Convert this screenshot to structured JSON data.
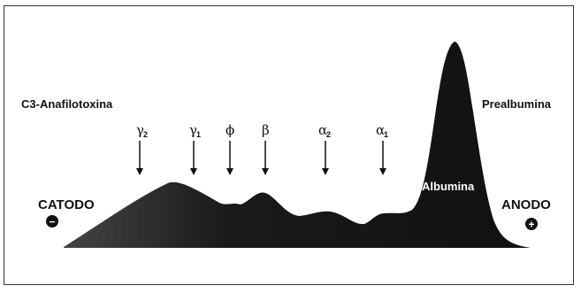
{
  "labels": {
    "left_top": "C3-Anafilotoxina",
    "right_top": "Prealbumina",
    "albumin": "Albumina",
    "cathode": "CATODO",
    "anode": "ANODO",
    "cathode_sign": "−",
    "anode_sign": "+"
  },
  "fractions": [
    {
      "symbol": "γ",
      "sub": "2"
    },
    {
      "symbol": "γ",
      "sub": "1"
    },
    {
      "symbol": "ϕ",
      "sub": ""
    },
    {
      "symbol": "β",
      "sub": ""
    },
    {
      "symbol": "α",
      "sub": "2"
    },
    {
      "symbol": "α",
      "sub": "1"
    }
  ],
  "colors": {
    "curve_dark": "#111111",
    "curve_light": "#3a3a3a",
    "border": "#333333"
  }
}
